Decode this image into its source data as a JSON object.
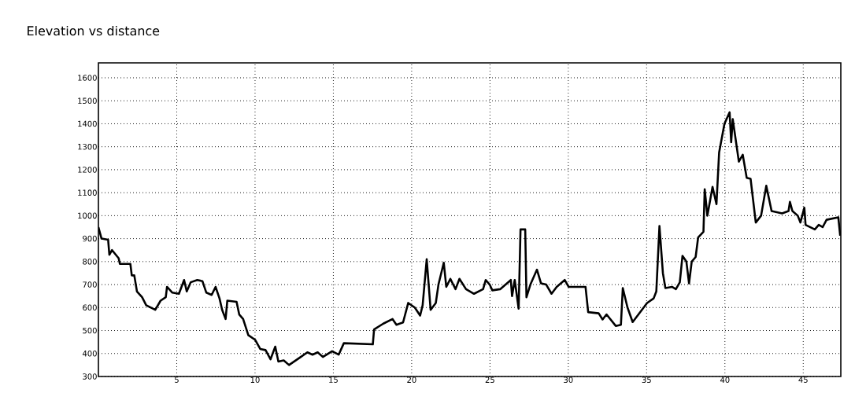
{
  "chart_data": {
    "type": "line",
    "title": "Elevation vs distance",
    "x": [
      0.0,
      0.2,
      0.62,
      0.7,
      0.87,
      1.29,
      1.37,
      2.04,
      2.13,
      2.29,
      2.46,
      2.79,
      3.05,
      3.63,
      3.97,
      4.3,
      4.38,
      4.72,
      5.14,
      5.47,
      5.64,
      5.89,
      6.31,
      6.64,
      6.89,
      7.23,
      7.48,
      7.73,
      7.9,
      8.12,
      8.23,
      8.82,
      8.99,
      9.24,
      9.57,
      10.0,
      10.33,
      10.67,
      10.99,
      11.29,
      11.49,
      11.83,
      12.17,
      12.92,
      13.34,
      13.67,
      14.0,
      14.33,
      14.92,
      15.34,
      15.67,
      17.52,
      17.6,
      18.19,
      18.78,
      19.03,
      19.45,
      19.78,
      20.2,
      20.54,
      20.7,
      20.96,
      21.21,
      21.54,
      21.71,
      22.05,
      22.21,
      22.47,
      22.8,
      23.05,
      23.47,
      23.98,
      24.56,
      24.73,
      24.98,
      25.15,
      25.65,
      26.33,
      26.41,
      26.58,
      26.83,
      26.95,
      27.25,
      27.33,
      27.58,
      28.0,
      28.26,
      28.59,
      28.93,
      29.26,
      29.77,
      30.02,
      30.43,
      31.1,
      31.27,
      31.94,
      32.19,
      32.44,
      33.03,
      33.36,
      33.48,
      33.78,
      34.11,
      34.87,
      35.03,
      35.45,
      35.62,
      35.82,
      36.04,
      36.2,
      36.62,
      36.87,
      37.12,
      37.29,
      37.54,
      37.71,
      37.88,
      38.13,
      38.29,
      38.63,
      38.71,
      38.88,
      39.21,
      39.46,
      39.63,
      39.97,
      40.3,
      40.4,
      40.5,
      40.89,
      41.14,
      41.39,
      41.64,
      41.97,
      42.31,
      42.64,
      42.98,
      43.65,
      44.06,
      44.15,
      44.31,
      44.65,
      44.82,
      45.07,
      45.15,
      45.74,
      45.99,
      46.24,
      46.49,
      47.24,
      47.36
    ],
    "series": [
      {
        "color": "#000000",
        "values": [
          950,
          900,
          895,
          830,
          850,
          815,
          790,
          790,
          740,
          740,
          670,
          645,
          610,
          590,
          630,
          645,
          690,
          665,
          660,
          720,
          670,
          710,
          720,
          715,
          665,
          655,
          690,
          640,
          590,
          550,
          630,
          625,
          570,
          550,
          480,
          460,
          420,
          415,
          375,
          430,
          365,
          370,
          350,
          385,
          405,
          395,
          405,
          385,
          410,
          395,
          445,
          440,
          505,
          530,
          550,
          525,
          535,
          620,
          600,
          565,
          610,
          810,
          590,
          620,
          700,
          795,
          690,
          725,
          680,
          725,
          680,
          660,
          680,
          720,
          700,
          675,
          680,
          720,
          650,
          720,
          595,
          940,
          940,
          645,
          700,
          765,
          705,
          700,
          660,
          690,
          720,
          690,
          690,
          690,
          580,
          575,
          548,
          570,
          520,
          525,
          685,
          600,
          537,
          605,
          620,
          640,
          670,
          955,
          750,
          685,
          690,
          680,
          710,
          825,
          800,
          705,
          800,
          820,
          905,
          930,
          1115,
          1000,
          1125,
          1050,
          1275,
          1400,
          1450,
          1320,
          1420,
          1235,
          1265,
          1165,
          1160,
          970,
          1000,
          1130,
          1020,
          1010,
          1020,
          1060,
          1020,
          1000,
          970,
          1035,
          960,
          940,
          960,
          950,
          982,
          993,
          913
        ]
      }
    ],
    "xlim": [
      0,
      47.4
    ],
    "ylim": [
      300,
      1665
    ],
    "xticks": [
      5,
      10,
      15,
      20,
      25,
      30,
      35,
      40,
      45
    ],
    "yticks": [
      300,
      400,
      500,
      600,
      700,
      800,
      900,
      1000,
      1100,
      1200,
      1300,
      1400,
      1500,
      1600
    ],
    "grid": true,
    "line_style": "solid",
    "marker": "none"
  }
}
